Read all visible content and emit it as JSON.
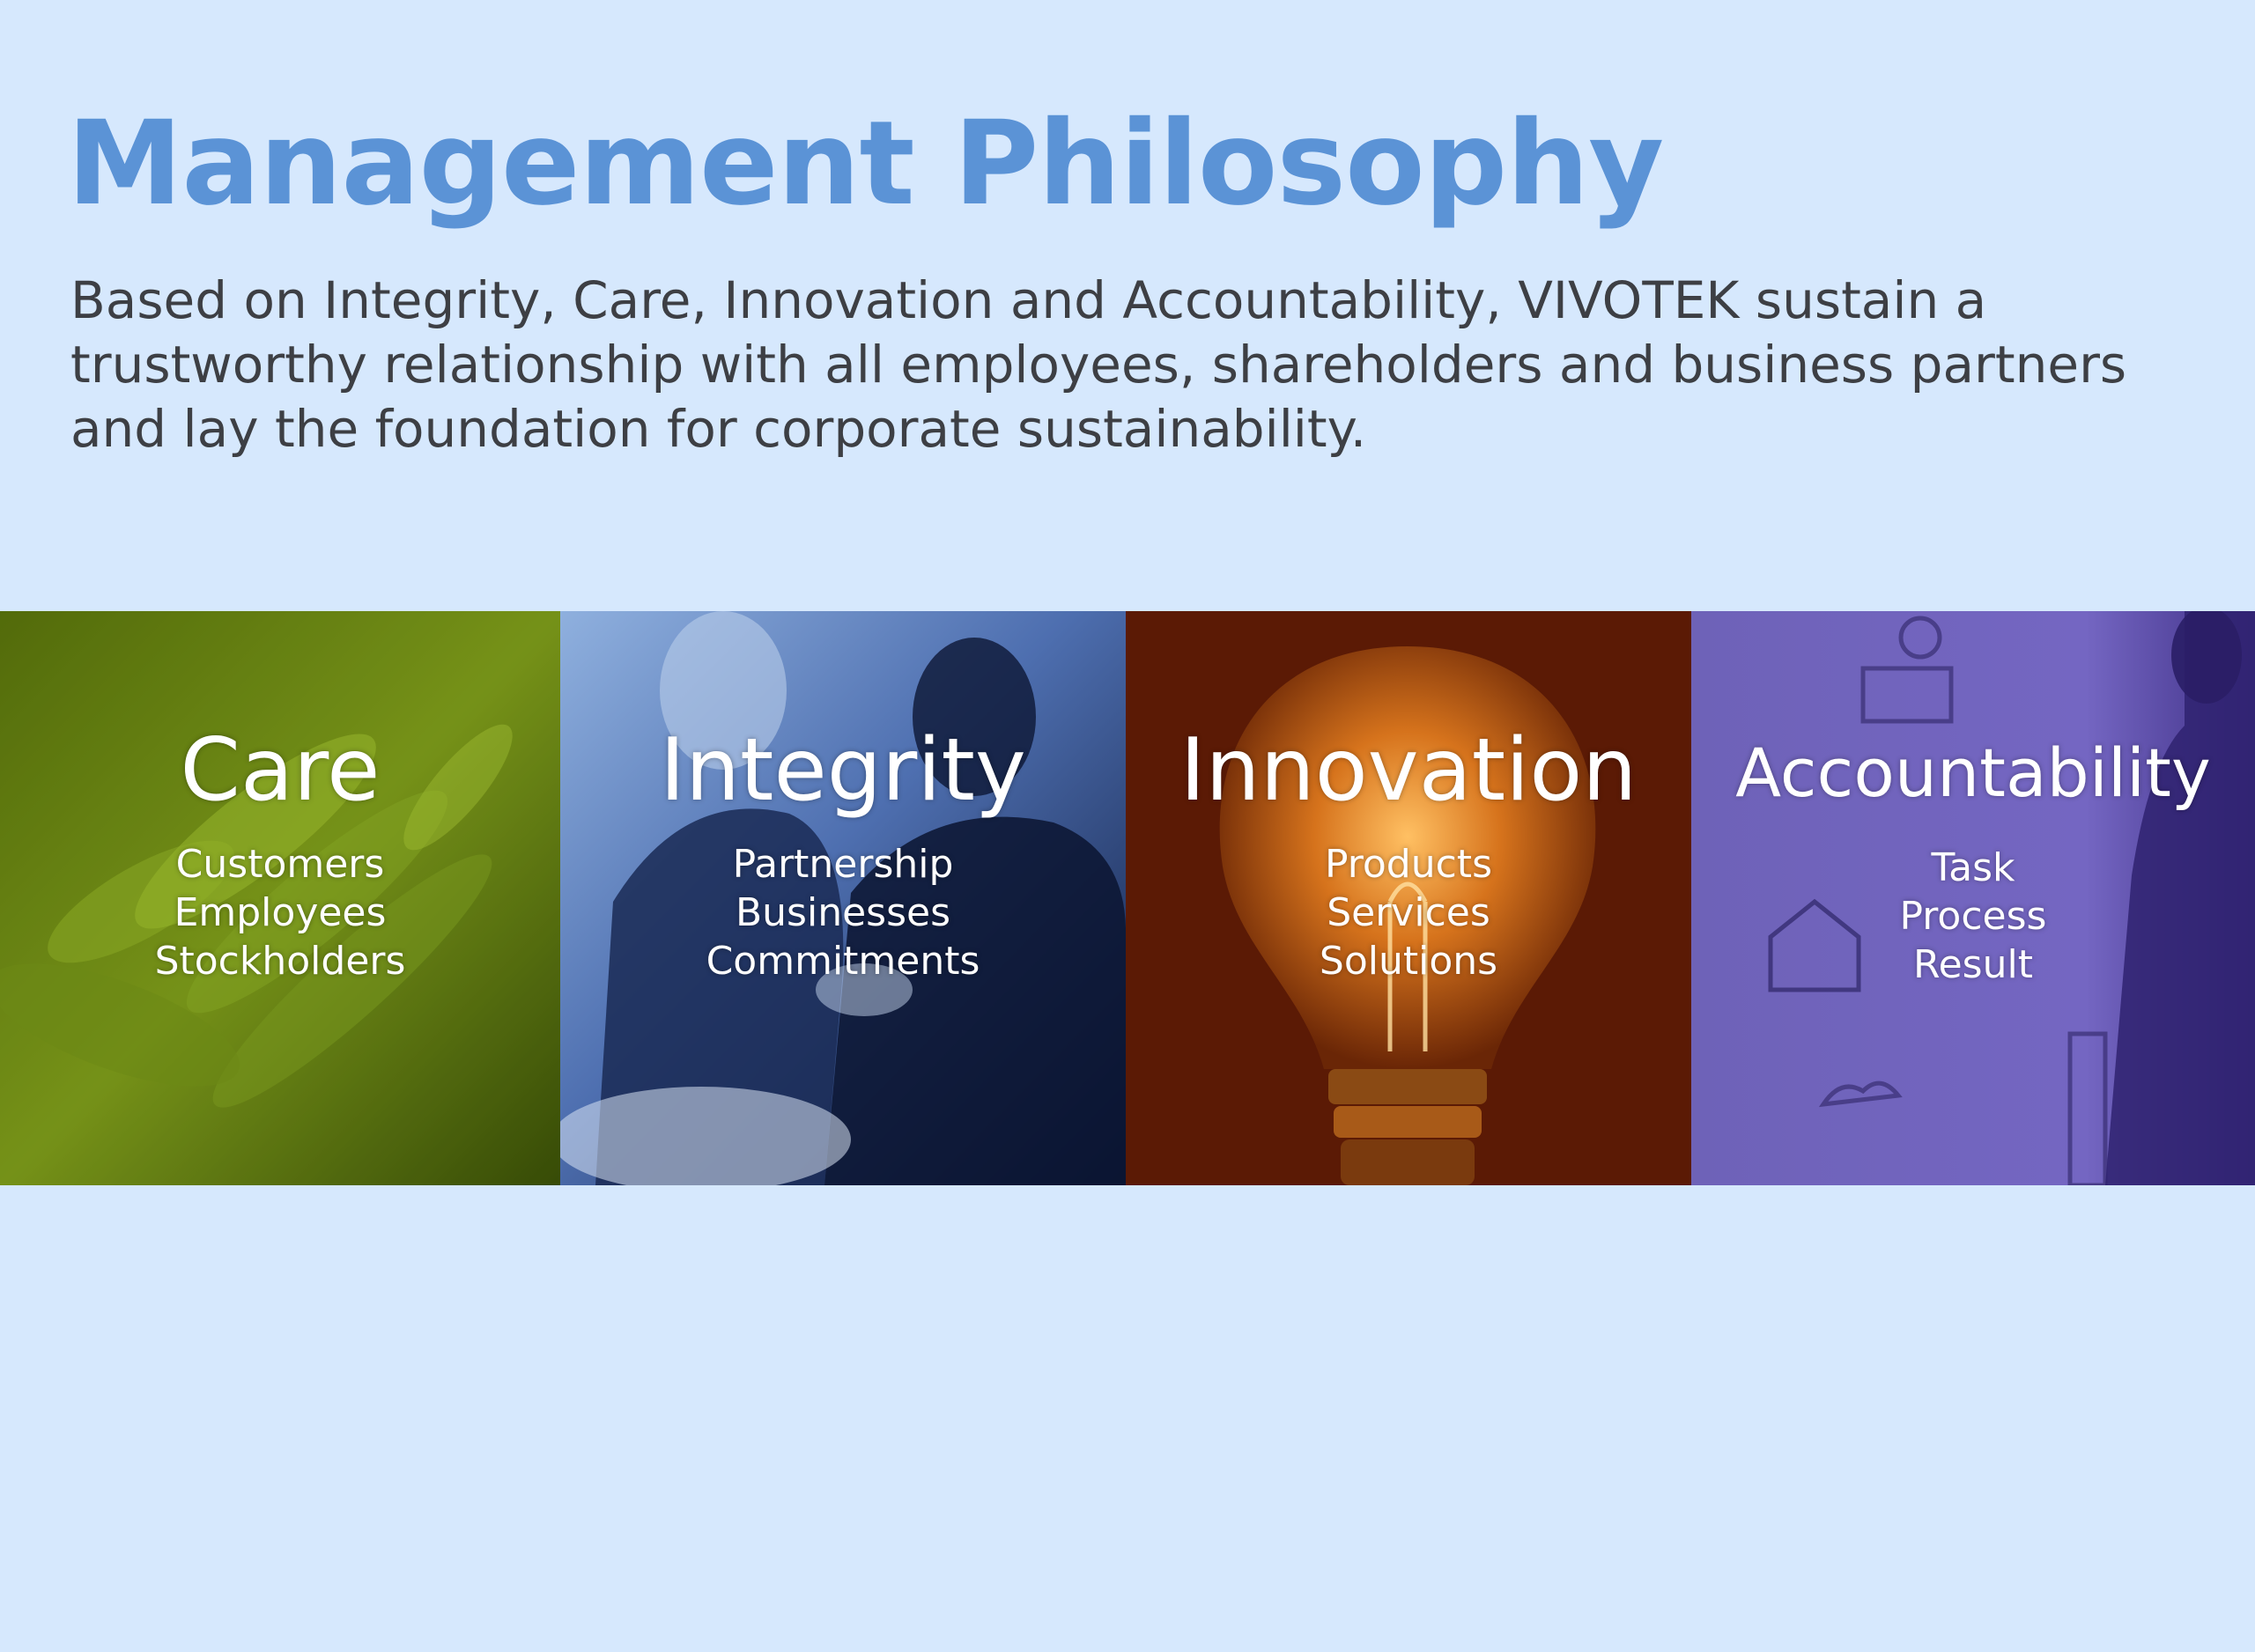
{
  "title": "Management Philosophy",
  "description": "Based on Integrity, Care, Innovation and Accountability, VIVOTEK sustain a trustworthy relationship with all employees, shareholders and business partners and lay the foundation for corporate sustainability.",
  "panels": [
    {
      "title": "Care",
      "items": [
        "Customers",
        "Employees",
        "Stockholders"
      ],
      "image": "hands-stacked-photo",
      "tint": "#6f8a12"
    },
    {
      "title": "Integrity",
      "items": [
        "Partnership",
        "Businesses",
        "Commitments"
      ],
      "image": "business-handshake-photo",
      "tint": "#1b2f63"
    },
    {
      "title": "Innovation",
      "items": [
        "Products",
        "Services",
        "Solutions"
      ],
      "image": "glowing-light-bulb-photo",
      "tint": "#5b1a05"
    },
    {
      "title": "Accountability",
      "items": [
        "Task",
        "Process",
        "Result"
      ],
      "image": "businessman-at-sketch-board-photo",
      "tint": "#6b5bb0"
    }
  ],
  "colors": {
    "background": "#d6e8fd",
    "title": "#5b93d6",
    "body_text": "#3d3f44"
  }
}
